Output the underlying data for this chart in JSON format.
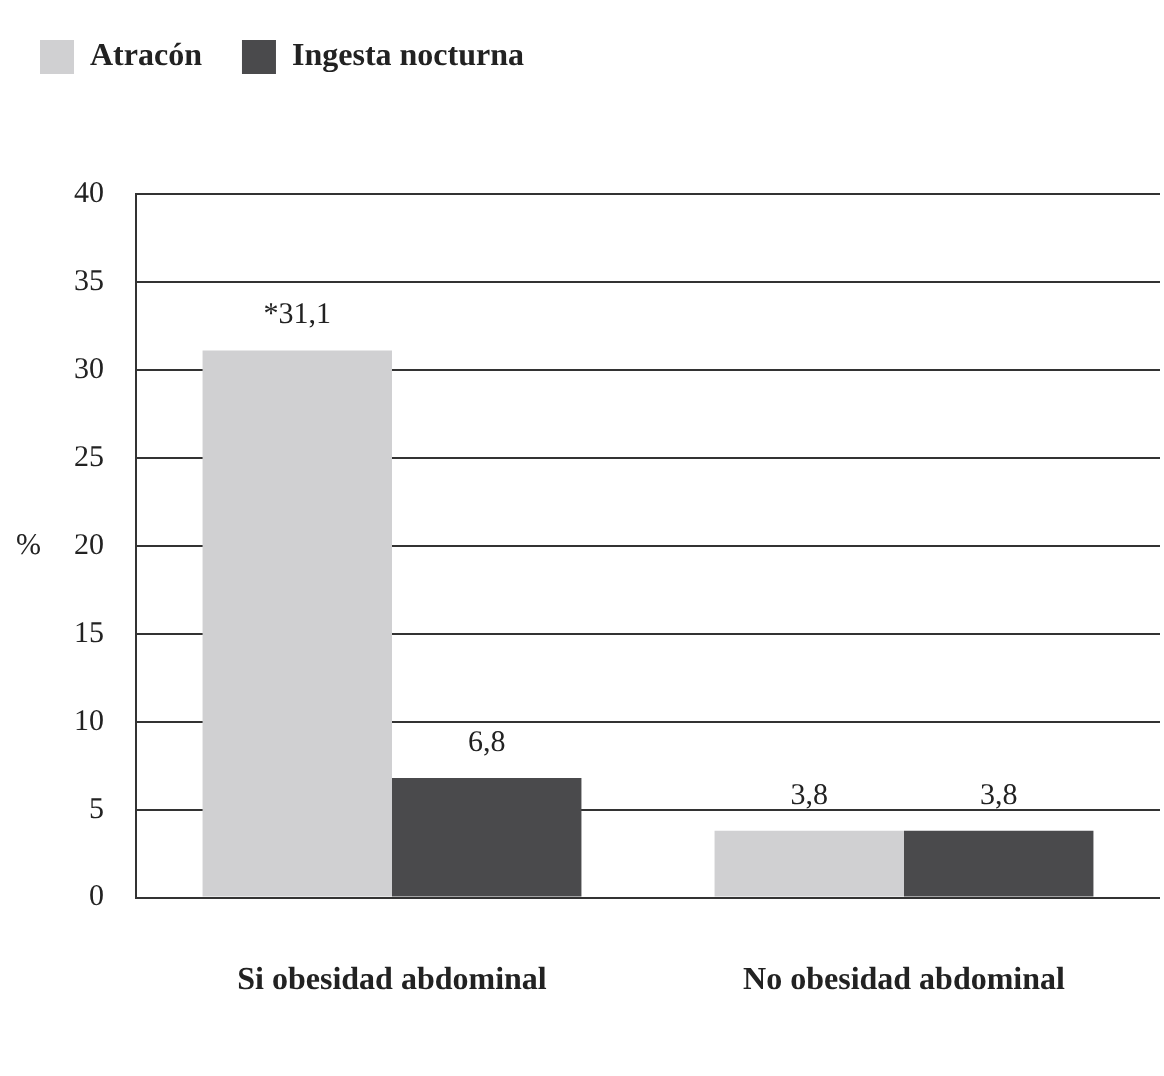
{
  "chart_data": {
    "type": "bar",
    "ylabel": "%",
    "categories": [
      "Si obesidad abdominal",
      "No obesidad abdominal"
    ],
    "series": [
      {
        "name": "Atracón",
        "color": "#d0d0d2",
        "values": [
          31.1,
          3.8
        ],
        "value_labels": [
          "*31,1",
          "3,8"
        ]
      },
      {
        "name": "Ingesta nocturna",
        "color": "#4a4a4c",
        "values": [
          6.8,
          3.8
        ],
        "value_labels": [
          "6,8",
          "3,8"
        ]
      }
    ],
    "ylim": [
      0,
      40
    ],
    "yticks": [
      0,
      5,
      10,
      15,
      20,
      25,
      30,
      35,
      40
    ],
    "grid": "y",
    "legend": "top left"
  }
}
